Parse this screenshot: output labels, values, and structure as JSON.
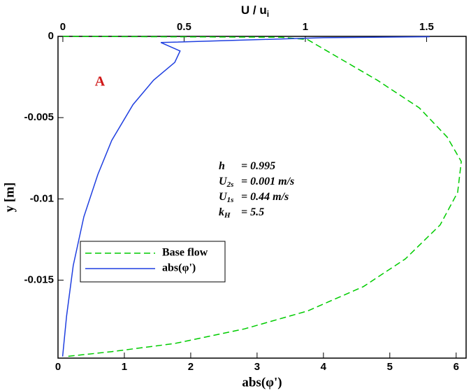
{
  "chart_data": {
    "type": "line",
    "x_label": "abs(φ')",
    "x2_label": {
      "main": "U / u",
      "sub": "i"
    },
    "y_label": "y [m]",
    "xlim": [
      0,
      6.15
    ],
    "xticks": [
      0,
      1,
      2,
      3,
      4,
      5,
      6
    ],
    "x2lim": [
      -0.02,
      1.663
    ],
    "x2ticks": [
      0,
      0.5,
      1,
      1.5
    ],
    "ylim": [
      -0.0198,
      0
    ],
    "yticks": [
      0,
      -0.005,
      -0.01,
      -0.015
    ],
    "panel_label": "A",
    "annotations": [
      {
        "main": "h",
        "rest": "= 0.995"
      },
      {
        "main": "U",
        "sub": "2s",
        "rest": "= 0.001 m/s"
      },
      {
        "main": "U",
        "sub": "1s",
        "rest": "= 0.44 m/s"
      },
      {
        "main": "k",
        "sub": "H",
        "rest": "= 5.5"
      }
    ],
    "series": [
      {
        "name": "Base flow",
        "color": "#00cc00",
        "dash": true,
        "axis": "x2",
        "x": [
          0,
          0.9,
          1.009,
          1.124,
          1.297,
          1.47,
          1.585,
          1.643,
          1.628,
          1.556,
          1.412,
          1.239,
          1.009,
          0.749,
          0.461,
          0.202,
          0.014
        ],
        "values": [
          0,
          -5e-05,
          -0.0002,
          -0.0012,
          -0.0027,
          -0.0044,
          -0.0062,
          -0.0077,
          -0.0096,
          -0.0116,
          -0.0137,
          -0.0154,
          -0.0169,
          -0.018,
          -0.0189,
          -0.0194,
          -0.0197
        ]
      },
      {
        "name": "abs(φ')",
        "color": "#1f3fe0",
        "dash": false,
        "x": [
          5.6,
          4.0,
          1.55,
          1.84,
          1.76,
          1.44,
          1.13,
          0.81,
          0.6,
          0.39,
          0.23,
          0.13,
          0.07
        ],
        "values": [
          -2e-05,
          -8e-05,
          -0.00038,
          -0.0009,
          -0.0016,
          -0.0027,
          -0.0042,
          -0.0064,
          -0.0085,
          -0.0111,
          -0.0141,
          -0.0172,
          -0.0197
        ]
      }
    ]
  }
}
